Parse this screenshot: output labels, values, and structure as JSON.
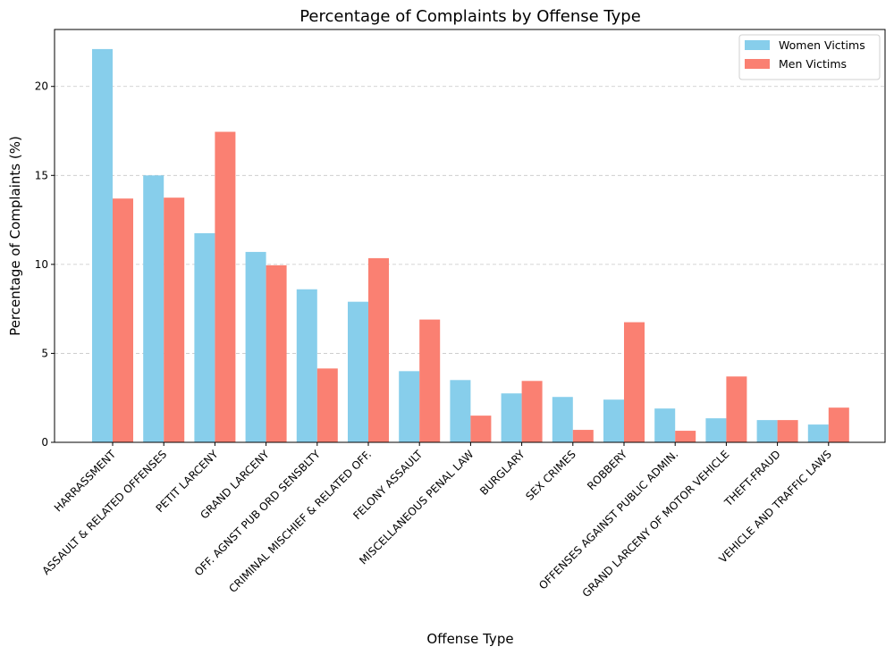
{
  "chart_data": {
    "type": "bar",
    "title": "Percentage of Complaints by Offense Type",
    "xlabel": "Offense Type",
    "ylabel": "Percentage of Complaints (%)",
    "ylim": [
      0,
      23.2
    ],
    "yticks": [
      0,
      5,
      10,
      15,
      20
    ],
    "grid": "y-dashed",
    "legend_position": "top-right",
    "categories": [
      "HARRASSMENT",
      "ASSAULT & RELATED OFFENSES",
      "PETIT LARCENY",
      "GRAND LARCENY",
      "OFF. AGNST PUB ORD SENSBLTY",
      "CRIMINAL MISCHIEF & RELATED OFF.",
      "FELONY ASSAULT",
      "MISCELLANEOUS PENAL LAW",
      "BURGLARY",
      "SEX CRIMES",
      "ROBBERY",
      "OFFENSES AGAINST PUBLIC ADMIN.",
      "GRAND LARCENY OF MOTOR VEHICLE",
      "THEFT-FRAUD",
      "VEHICLE AND TRAFFIC LAWS"
    ],
    "series": [
      {
        "name": "Women Victims",
        "color": "#87CEEB",
        "values": [
          22.1,
          15.0,
          11.75,
          10.7,
          8.6,
          7.9,
          4.0,
          3.5,
          2.75,
          2.55,
          2.4,
          1.9,
          1.35,
          1.25,
          1.0
        ]
      },
      {
        "name": "Men Victims",
        "color": "#FA8072",
        "values": [
          13.7,
          13.75,
          17.45,
          9.95,
          4.15,
          10.35,
          6.9,
          1.5,
          3.45,
          0.7,
          6.75,
          0.65,
          3.7,
          1.25,
          1.95
        ]
      }
    ]
  }
}
